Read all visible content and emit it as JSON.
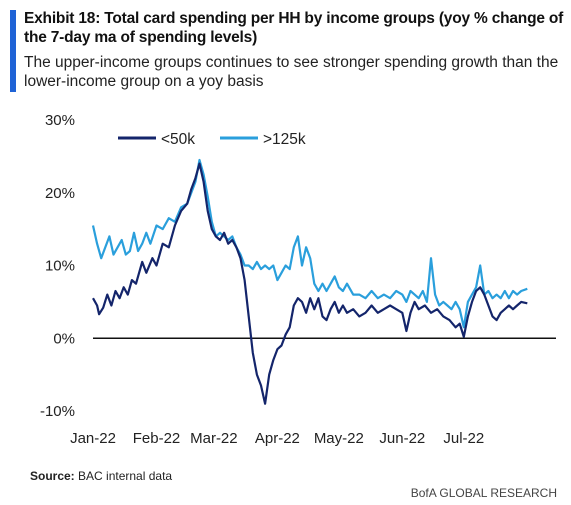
{
  "header": {
    "title": "Exhibit 18: Total card spending per HH by income groups (yoy % change of the 7-day ma of spending levels)",
    "subtitle": "The upper-income groups continues to see stronger spending growth than the lower-income group on a yoy basis"
  },
  "footer": {
    "source_label": "Source:",
    "source_text": "BAC internal data",
    "brand": "BofA GLOBAL RESEARCH"
  },
  "colors": {
    "accent": "#1f63d6",
    "series_low": "#14256b",
    "series_high": "#2a9fdc"
  },
  "chart_data": {
    "type": "line",
    "title": "",
    "xlabel": "",
    "ylabel": "",
    "ylim": [
      -10,
      30
    ],
    "yticks": [
      "30%",
      "20%",
      "10%",
      "0%",
      "-10%"
    ],
    "ytick_values": [
      30,
      20,
      10,
      0,
      -10
    ],
    "x_range": [
      "2022-01-01",
      "2022-08-15"
    ],
    "xticks": [
      "Jan-22",
      "Feb-22",
      "Mar-22",
      "Apr-22",
      "May-22",
      "Jun-22",
      "Jul-22"
    ],
    "xtick_dates": [
      "2022-01-01",
      "2022-02-01",
      "2022-03-01",
      "2022-04-01",
      "2022-05-01",
      "2022-06-01",
      "2022-07-01"
    ],
    "grid": false,
    "legend_position": "top-center",
    "series": [
      {
        "name": "<50k",
        "color": "#14256b",
        "points": [
          [
            "2022-01-01",
            5.5
          ],
          [
            "2022-01-03",
            4.5
          ],
          [
            "2022-01-04",
            3.3
          ],
          [
            "2022-01-06",
            4.2
          ],
          [
            "2022-01-08",
            6.0
          ],
          [
            "2022-01-10",
            4.5
          ],
          [
            "2022-01-12",
            6.5
          ],
          [
            "2022-01-14",
            5.5
          ],
          [
            "2022-01-16",
            7.0
          ],
          [
            "2022-01-18",
            6.0
          ],
          [
            "2022-01-20",
            8.0
          ],
          [
            "2022-01-22",
            7.5
          ],
          [
            "2022-01-25",
            10.5
          ],
          [
            "2022-01-27",
            9.0
          ],
          [
            "2022-01-30",
            11.0
          ],
          [
            "2022-02-01",
            10.0
          ],
          [
            "2022-02-04",
            13.0
          ],
          [
            "2022-02-07",
            12.5
          ],
          [
            "2022-02-10",
            15.5
          ],
          [
            "2022-02-13",
            17.5
          ],
          [
            "2022-02-16",
            18.5
          ],
          [
            "2022-02-18",
            20.5
          ],
          [
            "2022-02-20",
            22.0
          ],
          [
            "2022-02-22",
            24.0
          ],
          [
            "2022-02-24",
            21.5
          ],
          [
            "2022-02-26",
            17.5
          ],
          [
            "2022-02-28",
            15.0
          ],
          [
            "2022-03-02",
            14.0
          ],
          [
            "2022-03-04",
            13.5
          ],
          [
            "2022-03-06",
            14.5
          ],
          [
            "2022-03-08",
            13.0
          ],
          [
            "2022-03-10",
            13.5
          ],
          [
            "2022-03-12",
            12.5
          ],
          [
            "2022-03-14",
            11.0
          ],
          [
            "2022-03-16",
            8.0
          ],
          [
            "2022-03-18",
            3.0
          ],
          [
            "2022-03-20",
            -2.0
          ],
          [
            "2022-03-22",
            -5.0
          ],
          [
            "2022-03-24",
            -6.5
          ],
          [
            "2022-03-26",
            -9.0
          ],
          [
            "2022-03-28",
            -5.0
          ],
          [
            "2022-03-30",
            -3.0
          ],
          [
            "2022-04-01",
            -1.5
          ],
          [
            "2022-04-03",
            -1.0
          ],
          [
            "2022-04-05",
            0.5
          ],
          [
            "2022-04-07",
            1.5
          ],
          [
            "2022-04-09",
            4.5
          ],
          [
            "2022-04-11",
            5.5
          ],
          [
            "2022-04-13",
            5.0
          ],
          [
            "2022-04-15",
            3.5
          ],
          [
            "2022-04-17",
            5.5
          ],
          [
            "2022-04-19",
            4.0
          ],
          [
            "2022-04-21",
            5.5
          ],
          [
            "2022-04-23",
            3.0
          ],
          [
            "2022-04-25",
            2.5
          ],
          [
            "2022-04-27",
            4.0
          ],
          [
            "2022-04-29",
            5.0
          ],
          [
            "2022-05-01",
            3.5
          ],
          [
            "2022-05-03",
            4.5
          ],
          [
            "2022-05-05",
            3.5
          ],
          [
            "2022-05-08",
            4.0
          ],
          [
            "2022-05-11",
            3.0
          ],
          [
            "2022-05-14",
            3.5
          ],
          [
            "2022-05-17",
            4.5
          ],
          [
            "2022-05-20",
            3.5
          ],
          [
            "2022-05-23",
            4.0
          ],
          [
            "2022-05-26",
            4.5
          ],
          [
            "2022-05-29",
            4.0
          ],
          [
            "2022-06-01",
            3.5
          ],
          [
            "2022-06-03",
            1.0
          ],
          [
            "2022-06-05",
            3.5
          ],
          [
            "2022-06-07",
            5.0
          ],
          [
            "2022-06-09",
            4.0
          ],
          [
            "2022-06-12",
            4.5
          ],
          [
            "2022-06-15",
            3.5
          ],
          [
            "2022-06-18",
            4.0
          ],
          [
            "2022-06-21",
            3.0
          ],
          [
            "2022-06-24",
            2.5
          ],
          [
            "2022-06-27",
            1.5
          ],
          [
            "2022-06-29",
            2.0
          ],
          [
            "2022-07-01",
            0.2
          ],
          [
            "2022-07-03",
            3.0
          ],
          [
            "2022-07-05",
            5.0
          ],
          [
            "2022-07-07",
            6.5
          ],
          [
            "2022-07-09",
            7.0
          ],
          [
            "2022-07-11",
            6.0
          ],
          [
            "2022-07-13",
            4.5
          ],
          [
            "2022-07-15",
            3.0
          ],
          [
            "2022-07-17",
            2.5
          ],
          [
            "2022-07-19",
            3.5
          ],
          [
            "2022-07-21",
            4.0
          ],
          [
            "2022-07-23",
            4.5
          ],
          [
            "2022-07-25",
            4.0
          ],
          [
            "2022-07-27",
            4.5
          ],
          [
            "2022-07-29",
            5.0
          ],
          [
            "2022-08-01",
            4.8
          ]
        ]
      },
      {
        "name": ">125k",
        "color": "#2a9fdc",
        "points": [
          [
            "2022-01-01",
            15.5
          ],
          [
            "2022-01-03",
            13.0
          ],
          [
            "2022-01-05",
            11.0
          ],
          [
            "2022-01-07",
            12.5
          ],
          [
            "2022-01-09",
            14.0
          ],
          [
            "2022-01-11",
            11.5
          ],
          [
            "2022-01-13",
            12.5
          ],
          [
            "2022-01-15",
            13.5
          ],
          [
            "2022-01-17",
            11.5
          ],
          [
            "2022-01-19",
            12.0
          ],
          [
            "2022-01-21",
            14.5
          ],
          [
            "2022-01-23",
            12.0
          ],
          [
            "2022-01-25",
            13.0
          ],
          [
            "2022-01-27",
            14.5
          ],
          [
            "2022-01-29",
            13.0
          ],
          [
            "2022-02-01",
            15.5
          ],
          [
            "2022-02-04",
            15.0
          ],
          [
            "2022-02-07",
            16.5
          ],
          [
            "2022-02-10",
            16.0
          ],
          [
            "2022-02-13",
            18.0
          ],
          [
            "2022-02-16",
            18.5
          ],
          [
            "2022-02-18",
            20.0
          ],
          [
            "2022-02-20",
            21.5
          ],
          [
            "2022-02-22",
            24.5
          ],
          [
            "2022-02-24",
            22.5
          ],
          [
            "2022-02-26",
            19.5
          ],
          [
            "2022-02-28",
            16.0
          ],
          [
            "2022-03-02",
            14.0
          ],
          [
            "2022-03-04",
            14.5
          ],
          [
            "2022-03-06",
            14.0
          ],
          [
            "2022-03-08",
            13.5
          ],
          [
            "2022-03-10",
            14.0
          ],
          [
            "2022-03-12",
            12.5
          ],
          [
            "2022-03-14",
            11.5
          ],
          [
            "2022-03-16",
            10.0
          ],
          [
            "2022-03-18",
            10.0
          ],
          [
            "2022-03-20",
            9.5
          ],
          [
            "2022-03-22",
            10.5
          ],
          [
            "2022-03-24",
            9.5
          ],
          [
            "2022-03-26",
            10.0
          ],
          [
            "2022-03-28",
            9.5
          ],
          [
            "2022-03-30",
            10.0
          ],
          [
            "2022-04-01",
            8.0
          ],
          [
            "2022-04-03",
            9.0
          ],
          [
            "2022-04-05",
            10.0
          ],
          [
            "2022-04-07",
            9.5
          ],
          [
            "2022-04-09",
            12.5
          ],
          [
            "2022-04-11",
            14.0
          ],
          [
            "2022-04-13",
            10.0
          ],
          [
            "2022-04-15",
            12.5
          ],
          [
            "2022-04-17",
            11.0
          ],
          [
            "2022-04-19",
            7.5
          ],
          [
            "2022-04-21",
            6.5
          ],
          [
            "2022-04-23",
            7.5
          ],
          [
            "2022-04-25",
            6.5
          ],
          [
            "2022-04-27",
            7.5
          ],
          [
            "2022-04-29",
            8.5
          ],
          [
            "2022-05-01",
            7.0
          ],
          [
            "2022-05-03",
            6.5
          ],
          [
            "2022-05-05",
            7.5
          ],
          [
            "2022-05-08",
            6.0
          ],
          [
            "2022-05-11",
            6.0
          ],
          [
            "2022-05-14",
            5.5
          ],
          [
            "2022-05-17",
            6.5
          ],
          [
            "2022-05-20",
            5.5
          ],
          [
            "2022-05-23",
            6.0
          ],
          [
            "2022-05-26",
            5.5
          ],
          [
            "2022-05-29",
            6.5
          ],
          [
            "2022-06-01",
            6.0
          ],
          [
            "2022-06-03",
            5.0
          ],
          [
            "2022-06-05",
            6.5
          ],
          [
            "2022-06-07",
            6.0
          ],
          [
            "2022-06-09",
            5.5
          ],
          [
            "2022-06-11",
            6.5
          ],
          [
            "2022-06-13",
            5.0
          ],
          [
            "2022-06-15",
            11.0
          ],
          [
            "2022-06-17",
            6.0
          ],
          [
            "2022-06-19",
            4.5
          ],
          [
            "2022-06-21",
            5.0
          ],
          [
            "2022-06-23",
            4.5
          ],
          [
            "2022-06-25",
            4.0
          ],
          [
            "2022-06-27",
            5.0
          ],
          [
            "2022-06-29",
            4.0
          ],
          [
            "2022-07-01",
            1.5
          ],
          [
            "2022-07-03",
            5.0
          ],
          [
            "2022-07-05",
            6.0
          ],
          [
            "2022-07-07",
            7.0
          ],
          [
            "2022-07-09",
            10.0
          ],
          [
            "2022-07-11",
            6.0
          ],
          [
            "2022-07-13",
            6.5
          ],
          [
            "2022-07-15",
            5.5
          ],
          [
            "2022-07-17",
            6.0
          ],
          [
            "2022-07-19",
            5.5
          ],
          [
            "2022-07-21",
            6.5
          ],
          [
            "2022-07-23",
            5.5
          ],
          [
            "2022-07-25",
            6.5
          ],
          [
            "2022-07-27",
            6.0
          ],
          [
            "2022-07-29",
            6.5
          ],
          [
            "2022-08-01",
            6.8
          ]
        ]
      }
    ]
  }
}
